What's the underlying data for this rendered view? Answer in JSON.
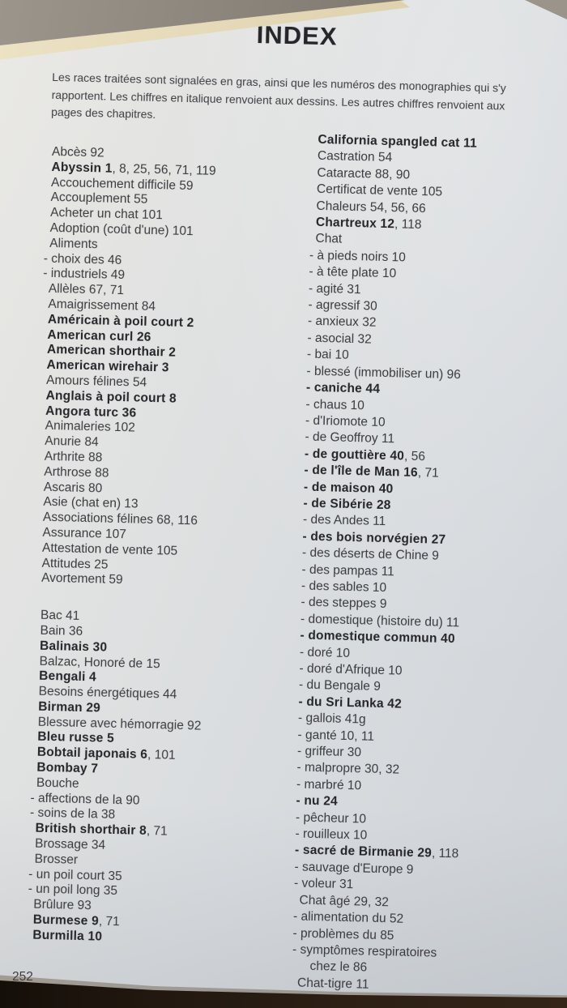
{
  "page": {
    "title": "INDEX",
    "note": "Les races traitées sont signalées en gras, ainsi que les numéros des monographies qui s'y rapportent. Les chiffres en italique renvoient aux dessins. Les autres chiffres renvoient aux pages des chapitres.",
    "page_number": "252"
  },
  "colors": {
    "ink": "#3a3a3e",
    "ink_bold": "#26262a",
    "paper": "#d9dcdf",
    "page_edge": "#e9dfc0",
    "background_top": "#938d84",
    "background_bottom": "#2a1e12"
  },
  "index": {
    "left_column": [
      {
        "b": "",
        "t": "Abcès 92"
      },
      {
        "b": "Abyssin 1",
        "t": ", 8, 25, 56, 71, 119"
      },
      {
        "b": "",
        "t": "Accouchement difficile 59"
      },
      {
        "b": "",
        "t": "Accouplement 55"
      },
      {
        "b": "",
        "t": "Acheter un chat 101"
      },
      {
        "b": "",
        "t": "Adoption (coût d'une) 101"
      },
      {
        "b": "",
        "t": "Aliments"
      },
      {
        "b": "",
        "t": "- choix des 46"
      },
      {
        "b": "",
        "t": "- industriels 49"
      },
      {
        "b": "",
        "t": "Allèles 67, 71"
      },
      {
        "b": "",
        "t": "Amaigrissement 84"
      },
      {
        "b": "Américain à poil court 2",
        "t": ""
      },
      {
        "b": "American curl 26",
        "t": ""
      },
      {
        "b": "American shorthair 2",
        "t": ""
      },
      {
        "b": "American wirehair 3",
        "t": ""
      },
      {
        "b": "",
        "t": "Amours félines 54"
      },
      {
        "b": "Anglais à poil court 8",
        "t": ""
      },
      {
        "b": "Angora turc 36",
        "t": ""
      },
      {
        "b": "",
        "t": "Animaleries 102"
      },
      {
        "b": "",
        "t": "Anurie 84"
      },
      {
        "b": "",
        "t": "Arthrite 88"
      },
      {
        "b": "",
        "t": "Arthrose 88"
      },
      {
        "b": "",
        "t": "Ascaris 80"
      },
      {
        "b": "",
        "t": "Asie (chat en) 13"
      },
      {
        "b": "",
        "t": "Associations félines 68, 116"
      },
      {
        "b": "",
        "t": "Assurance 107"
      },
      {
        "b": "",
        "t": "Attestation de vente 105"
      },
      {
        "b": "",
        "t": "Attitudes 25"
      },
      {
        "b": "",
        "t": "Avortement 59"
      },
      {
        "b": "",
        "t": "Bac 41",
        "gap": true
      },
      {
        "b": "",
        "t": "Bain 36"
      },
      {
        "b": "Balinais 30",
        "t": ""
      },
      {
        "b": "",
        "t": "Balzac, Honoré de 15"
      },
      {
        "b": "Bengali 4",
        "t": ""
      },
      {
        "b": "",
        "t": "Besoins énergétiques 44"
      },
      {
        "b": "Birman 29",
        "t": ""
      },
      {
        "b": "",
        "t": "Blessure avec hémorragie 92"
      },
      {
        "b": "Bleu russe 5",
        "t": ""
      },
      {
        "b": "Bobtail japonais 6",
        "t": ", 101"
      },
      {
        "b": "Bombay 7",
        "t": ""
      },
      {
        "b": "",
        "t": "Bouche"
      },
      {
        "b": "",
        "t": "- affections de la 90"
      },
      {
        "b": "",
        "t": "- soins de la 38"
      },
      {
        "b": "British shorthair 8",
        "t": ", 71"
      },
      {
        "b": "",
        "t": "Brossage 34"
      },
      {
        "b": "",
        "t": "Brosser"
      },
      {
        "b": "",
        "t": "- un poil court 35"
      },
      {
        "b": "",
        "t": "- un poil long 35"
      },
      {
        "b": "",
        "t": "Brûlure 93"
      },
      {
        "b": "Burmese 9",
        "t": ", 71"
      },
      {
        "b": "Burmilla 10",
        "t": ""
      }
    ],
    "right_column": [
      {
        "b": "California spangled cat 11",
        "t": ""
      },
      {
        "b": "",
        "t": "Castration 54"
      },
      {
        "b": "",
        "t": "Cataracte 88, 90"
      },
      {
        "b": "",
        "t": "Certificat de vente 105"
      },
      {
        "b": "",
        "t": "Chaleurs 54, 56, 66"
      },
      {
        "b": "Chartreux 12",
        "t": ", 118"
      },
      {
        "b": "",
        "t": "Chat"
      },
      {
        "b": "",
        "t": "- à pieds noirs 10"
      },
      {
        "b": "",
        "t": "- à tête plate 10"
      },
      {
        "b": "",
        "t": "- agité 31"
      },
      {
        "b": "",
        "t": "- agressif 30"
      },
      {
        "b": "",
        "t": "- anxieux 32"
      },
      {
        "b": "",
        "t": "- asocial 32"
      },
      {
        "b": "",
        "t": "- bai 10"
      },
      {
        "b": "",
        "t": "- blessé (immobiliser un) 96"
      },
      {
        "b": "- caniche 44",
        "t": ""
      },
      {
        "b": "",
        "t": "- chaus 10"
      },
      {
        "b": "",
        "t": "- d'Iriomote 10"
      },
      {
        "b": "",
        "t": "- de Geoffroy 11"
      },
      {
        "b": "- de gouttière 40",
        "t": ", 56"
      },
      {
        "b": "- de l'île de Man 16",
        "t": ", 71"
      },
      {
        "b": "- de maison 40",
        "t": ""
      },
      {
        "b": "- de Sibérie 28",
        "t": ""
      },
      {
        "b": "",
        "t": "- des Andes 11"
      },
      {
        "b": "- des bois norvégien 27",
        "t": ""
      },
      {
        "b": "",
        "t": "- des déserts de Chine 9"
      },
      {
        "b": "",
        "t": "- des pampas 11"
      },
      {
        "b": "",
        "t": "- des sables 10"
      },
      {
        "b": "",
        "t": "- des steppes 9"
      },
      {
        "b": "",
        "t": "- domestique (histoire du) 11"
      },
      {
        "b": "- domestique commun 40",
        "t": ""
      },
      {
        "b": "",
        "t": "- doré 10"
      },
      {
        "b": "",
        "t": "- doré d'Afrique 10"
      },
      {
        "b": "",
        "t": "- du Bengale 9"
      },
      {
        "b": "- du Sri Lanka 42",
        "t": ""
      },
      {
        "b": "",
        "t": "- gallois 41g"
      },
      {
        "b": "",
        "t": "- ganté 10, 11"
      },
      {
        "b": "",
        "t": "- griffeur 30"
      },
      {
        "b": "",
        "t": "- malpropre 30, 32"
      },
      {
        "b": "",
        "t": "- marbré 10"
      },
      {
        "b": "- nu 24",
        "t": ""
      },
      {
        "b": "",
        "t": "- pêcheur 10"
      },
      {
        "b": "",
        "t": "- rouilleux 10"
      },
      {
        "b": "- sacré de Birmanie 29",
        "t": ", 118"
      },
      {
        "b": "",
        "t": "- sauvage d'Europe 9"
      },
      {
        "b": "",
        "t": "- voleur 31"
      },
      {
        "b": "",
        "t": "Chat âgé 29, 32"
      },
      {
        "b": "",
        "t": "- alimentation du 52"
      },
      {
        "b": "",
        "t": "- problèmes du 85"
      },
      {
        "b": "",
        "t": "- symptômes respiratoires"
      },
      {
        "b": "",
        "t": "chez le 86",
        "wrap": true
      },
      {
        "b": "",
        "t": "Chat-tigre 11"
      }
    ]
  }
}
